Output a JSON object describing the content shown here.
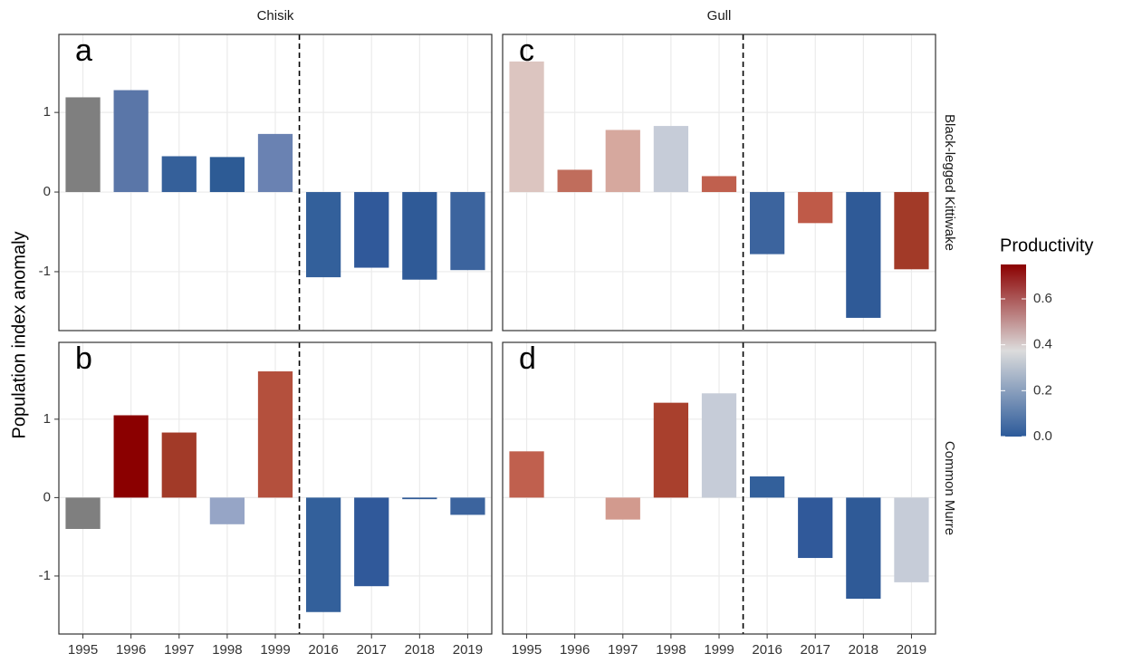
{
  "chart_data": {
    "type": "bar",
    "ylabel": "Population index anomaly",
    "categories": [
      "1995",
      "1996",
      "1997",
      "1998",
      "1999",
      "2016",
      "2017",
      "2018",
      "2019"
    ],
    "ylim": [
      -1.74,
      1.98
    ],
    "yticks": [
      -1,
      0,
      1
    ],
    "grid": true,
    "columns": [
      "Chisik",
      "Gull"
    ],
    "rows": [
      "Black-legged Kittiwake",
      "Common Murre"
    ],
    "panels": [
      {
        "letter": "a",
        "column": 0,
        "row": 0,
        "values": [
          1.19,
          1.28,
          0.45,
          0.44,
          0.73,
          -1.07,
          -0.95,
          -1.1,
          -0.98
        ],
        "colors": [
          "#7f7f7f",
          "#5a76a8",
          "#35609a",
          "#2d5b95",
          "#6a82b2",
          "#33609b",
          "#30599a",
          "#2f5a97",
          "#3c649e"
        ]
      },
      {
        "letter": "b",
        "column": 0,
        "row": 1,
        "values": [
          -0.4,
          1.05,
          0.83,
          -0.34,
          1.61,
          -1.46,
          -1.13,
          -0.02,
          -0.22
        ],
        "colors": [
          "#7f7f7f",
          "#8b0000",
          "#a23a28",
          "#96a5c6",
          "#b4503d",
          "#33609b",
          "#30599a",
          "#2f5a97",
          "#3c649e"
        ]
      },
      {
        "letter": "c",
        "column": 1,
        "row": 0,
        "values": [
          1.64,
          0.28,
          0.78,
          0.83,
          0.2,
          -0.78,
          -0.39,
          -1.58,
          -0.97
        ],
        "colors": [
          "#dcc5c0",
          "#c06d5c",
          "#d6a89e",
          "#c6ccd8",
          "#c0604e",
          "#3c649e",
          "#bf5a48",
          "#2f5a97",
          "#a23a28"
        ]
      },
      {
        "letter": "d",
        "column": 1,
        "row": 1,
        "values": [
          0.59,
          null,
          -0.28,
          1.21,
          1.33,
          0.27,
          -0.77,
          -1.29,
          -1.08
        ],
        "colors": [
          "#c0604e",
          null,
          "#d29a8e",
          "#a9402d",
          "#c6ccd8",
          "#33609b",
          "#30599a",
          "#2f5a97",
          "#c6ccd8"
        ]
      }
    ],
    "colorbar": {
      "title": "Productivity",
      "lim": [
        0,
        0.75
      ],
      "ticks": [
        {
          "value": 0,
          "label": "0.0"
        },
        0.2,
        0.4,
        0.6
      ],
      "gradient": [
        "#2c5a9a",
        "#dcdcdc",
        "#8b0000"
      ]
    }
  }
}
